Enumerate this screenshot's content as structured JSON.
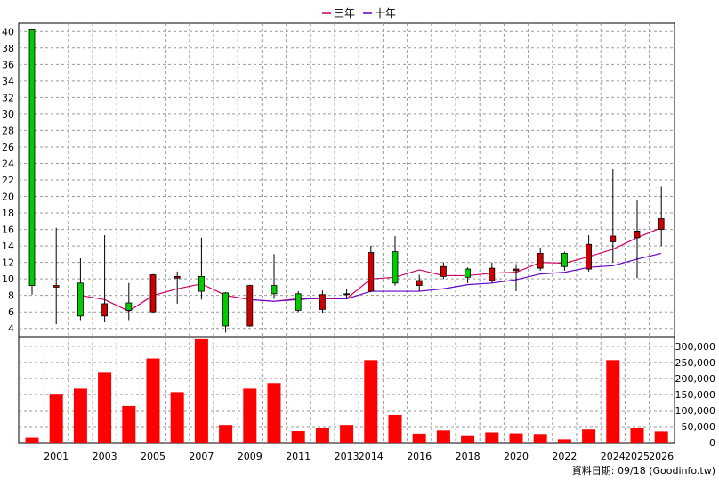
{
  "legend": {
    "three_year": "三年",
    "ten_year": "十年"
  },
  "footer": "資料日期: 09/18 (Goodinfo.tw)",
  "colors": {
    "up": "#00cc00",
    "down": "#cc0000",
    "volume": "#ff0000",
    "ma3": "#cc0066",
    "ma10": "#6600cc",
    "grid": "#999999"
  },
  "chart_data": [
    {
      "type": "candlestick",
      "title": "",
      "ylim": [
        3,
        41
      ],
      "yticks": [
        4,
        6,
        8,
        10,
        12,
        14,
        16,
        18,
        20,
        22,
        24,
        26,
        28,
        30,
        32,
        34,
        36,
        38,
        40
      ],
      "ytick_labels": [
        "4",
        "6",
        "8",
        "10",
        "12",
        "14",
        "16",
        "18",
        "20",
        "22",
        "24",
        "26",
        "28",
        "30",
        "32",
        "34",
        "36",
        "38",
        "40"
      ],
      "grid": true,
      "candles": [
        {
          "year": 2000,
          "open": 9.2,
          "close": 40.2,
          "high": 40.2,
          "low": 8.1
        },
        {
          "year": 2001,
          "open": 9.2,
          "close": 9.0,
          "high": 16.2,
          "low": 4.5
        },
        {
          "year": 2002,
          "open": 5.5,
          "close": 9.5,
          "high": 12.5,
          "low": 5.0
        },
        {
          "year": 2003,
          "open": 7.0,
          "close": 5.5,
          "high": 15.3,
          "low": 4.8
        },
        {
          "year": 2004,
          "open": 6.2,
          "close": 7.1,
          "high": 9.5,
          "low": 5.0
        },
        {
          "year": 2005,
          "open": 10.5,
          "close": 6.0,
          "high": 10.6,
          "low": 5.9
        },
        {
          "year": 2006,
          "open": 10.3,
          "close": 10.1,
          "high": 10.9,
          "low": 7.0
        },
        {
          "year": 2007,
          "open": 8.5,
          "close": 10.3,
          "high": 15.0,
          "low": 7.5
        },
        {
          "year": 2008,
          "open": 4.3,
          "close": 8.3,
          "high": 8.4,
          "low": 3.5
        },
        {
          "year": 2009,
          "open": 9.2,
          "close": 4.3,
          "high": 9.3,
          "low": 4.2
        },
        {
          "year": 2010,
          "open": 8.2,
          "close": 9.2,
          "high": 13.0,
          "low": 7.6
        },
        {
          "year": 2011,
          "open": 6.2,
          "close": 8.2,
          "high": 8.5,
          "low": 6.0
        },
        {
          "year": 2012,
          "open": 8.1,
          "close": 6.3,
          "high": 8.6,
          "low": 5.9
        },
        {
          "year": 2013,
          "open": 8.2,
          "close": 8.1,
          "high": 8.8,
          "low": 7.6
        },
        {
          "year": 2014,
          "open": 13.2,
          "close": 8.5,
          "high": 14.0,
          "low": 8.4
        },
        {
          "year": 2015,
          "open": 9.5,
          "close": 13.3,
          "high": 15.2,
          "low": 9.2
        },
        {
          "year": 2016,
          "open": 9.8,
          "close": 9.2,
          "high": 10.5,
          "low": 8.5
        },
        {
          "year": 2017,
          "open": 11.5,
          "close": 10.3,
          "high": 12.0,
          "low": 10.0
        },
        {
          "year": 2018,
          "open": 10.2,
          "close": 11.2,
          "high": 11.4,
          "low": 9.5
        },
        {
          "year": 2019,
          "open": 11.3,
          "close": 9.8,
          "high": 12.0,
          "low": 9.5
        },
        {
          "year": 2020,
          "open": 11.2,
          "close": 11.0,
          "high": 11.8,
          "low": 8.5
        },
        {
          "year": 2021,
          "open": 13.1,
          "close": 11.3,
          "high": 13.8,
          "low": 11.0
        },
        {
          "year": 2022,
          "open": 11.5,
          "close": 13.1,
          "high": 13.3,
          "low": 11.0
        },
        {
          "year": 2023,
          "open": 14.2,
          "close": 11.2,
          "high": 15.3,
          "low": 10.9
        },
        {
          "year": 2024,
          "open": 15.2,
          "close": 14.5,
          "high": 23.3,
          "low": 12.0
        },
        {
          "year": 2025,
          "open": 15.8,
          "close": 15.0,
          "high": 19.6,
          "low": 10.1
        },
        {
          "year": 2026,
          "open": 17.3,
          "close": 16.0,
          "high": 21.2,
          "low": 14.0
        }
      ],
      "series": [
        {
          "name": "三年",
          "color": "#cc0066",
          "points": [
            [
              2002,
              8.0
            ],
            [
              2003,
              7.5
            ],
            [
              2004,
              6.1
            ],
            [
              2005,
              8.0
            ],
            [
              2006,
              8.8
            ],
            [
              2007,
              9.4
            ],
            [
              2008,
              8.0
            ],
            [
              2009,
              7.5
            ],
            [
              2010,
              7.3
            ],
            [
              2011,
              7.6
            ],
            [
              2012,
              7.6
            ],
            [
              2013,
              7.6
            ],
            [
              2014,
              10.0
            ],
            [
              2015,
              10.2
            ],
            [
              2016,
              11.1
            ],
            [
              2017,
              10.4
            ],
            [
              2018,
              10.4
            ],
            [
              2019,
              10.7
            ],
            [
              2020,
              10.8
            ],
            [
              2021,
              12.0
            ],
            [
              2022,
              11.9
            ],
            [
              2023,
              12.7
            ],
            [
              2024,
              13.6
            ],
            [
              2025,
              15.0
            ],
            [
              2026,
              16.2
            ]
          ]
        },
        {
          "name": "十年",
          "color": "#6600cc",
          "points": [
            [
              2009,
              7.5
            ],
            [
              2010,
              7.3
            ],
            [
              2011,
              7.5
            ],
            [
              2012,
              7.7
            ],
            [
              2013,
              7.6
            ],
            [
              2014,
              8.5
            ],
            [
              2015,
              8.5
            ],
            [
              2016,
              8.5
            ],
            [
              2017,
              8.8
            ],
            [
              2018,
              9.3
            ],
            [
              2019,
              9.5
            ],
            [
              2020,
              9.9
            ],
            [
              2021,
              10.6
            ],
            [
              2022,
              10.8
            ],
            [
              2023,
              11.4
            ],
            [
              2024,
              11.6
            ],
            [
              2025,
              12.4
            ],
            [
              2026,
              13.1
            ]
          ]
        }
      ]
    },
    {
      "type": "bar",
      "title": "",
      "ylim": [
        0,
        330000
      ],
      "yticks": [
        0,
        50000,
        100000,
        150000,
        200000,
        250000,
        300000
      ],
      "ytick_labels": [
        "0",
        "50,000",
        "100,000",
        "150,000",
        "200,000",
        "250,000",
        "300,000"
      ],
      "grid": true,
      "categories": [
        2000,
        2001,
        2002,
        2003,
        2004,
        2005,
        2006,
        2007,
        2008,
        2009,
        2010,
        2011,
        2012,
        2013,
        2014,
        2015,
        2016,
        2017,
        2018,
        2019,
        2020,
        2021,
        2022,
        2023,
        2024,
        2025,
        2026
      ],
      "values": [
        15000,
        152000,
        168000,
        218000,
        114000,
        262000,
        157000,
        322000,
        55000,
        168000,
        185000,
        36000,
        46000,
        55000,
        257000,
        86000,
        28000,
        38000,
        23000,
        32000,
        29000,
        27000,
        10000,
        41000,
        257000,
        46000,
        35000
      ],
      "x_tick_labels": [
        {
          "year": 2001,
          "label": "2001"
        },
        {
          "year": 2003,
          "label": "2003"
        },
        {
          "year": 2005,
          "label": "2005"
        },
        {
          "year": 2007,
          "label": "2007"
        },
        {
          "year": 2009,
          "label": "2009"
        },
        {
          "year": 2011,
          "label": "2011"
        },
        {
          "year": 2013,
          "label": "2013"
        },
        {
          "year": 2014,
          "label": "2014"
        },
        {
          "year": 2016,
          "label": "2016"
        },
        {
          "year": 2018,
          "label": "2018"
        },
        {
          "year": 2020,
          "label": "2020"
        },
        {
          "year": 2022,
          "label": "2022"
        },
        {
          "year": 2024,
          "label": "2024"
        },
        {
          "year": 2025,
          "label": "2025"
        },
        {
          "year": 2026,
          "label": "2026"
        }
      ]
    }
  ]
}
